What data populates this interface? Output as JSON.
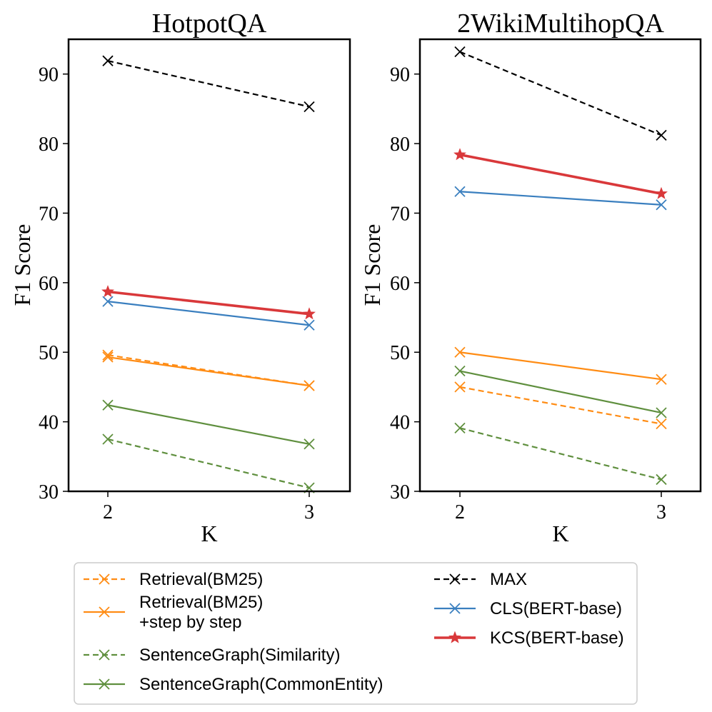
{
  "chart_data": [
    {
      "type": "line",
      "title": "HotpotQA",
      "xlabel": "K",
      "ylabel": "F1 Score",
      "x": [
        2,
        3
      ],
      "xticks": [
        "2",
        "3"
      ],
      "ylim": [
        30,
        95
      ],
      "yticks": [
        "30",
        "40",
        "50",
        "60",
        "70",
        "80",
        "90"
      ],
      "series": [
        {
          "name": "Retrieval(BM25)",
          "values": [
            49.6,
            45.2
          ]
        },
        {
          "name": "Retrieval(BM25) +step by step",
          "values": [
            49.3,
            45.2
          ]
        },
        {
          "name": "SentenceGraph(Similarity)",
          "values": [
            37.5,
            30.5
          ]
        },
        {
          "name": "SentenceGraph(CommonEntity)",
          "values": [
            42.4,
            36.8
          ]
        },
        {
          "name": "MAX",
          "values": [
            91.9,
            85.3
          ]
        },
        {
          "name": "CLS(BERT-base)",
          "values": [
            57.3,
            53.9
          ]
        },
        {
          "name": "KCS(BERT-base)",
          "values": [
            58.7,
            55.5
          ]
        }
      ]
    },
    {
      "type": "line",
      "title": "2WikiMultihopQA",
      "xlabel": "K",
      "ylabel": "F1 Score",
      "x": [
        2,
        3
      ],
      "xticks": [
        "2",
        "3"
      ],
      "ylim": [
        30,
        95
      ],
      "yticks": [
        "30",
        "40",
        "50",
        "60",
        "70",
        "80",
        "90"
      ],
      "series": [
        {
          "name": "Retrieval(BM25)",
          "values": [
            45.0,
            39.7
          ]
        },
        {
          "name": "Retrieval(BM25) +step by step",
          "values": [
            50.0,
            46.1
          ]
        },
        {
          "name": "SentenceGraph(Similarity)",
          "values": [
            39.1,
            31.7
          ]
        },
        {
          "name": "SentenceGraph(CommonEntity)",
          "values": [
            47.3,
            41.3
          ]
        },
        {
          "name": "MAX",
          "values": [
            93.2,
            81.2
          ]
        },
        {
          "name": "CLS(BERT-base)",
          "values": [
            73.1,
            71.2
          ]
        },
        {
          "name": "KCS(BERT-base)",
          "values": [
            78.4,
            72.8
          ]
        }
      ]
    }
  ],
  "legend": {
    "placement": "bottom",
    "entries": [
      {
        "label_lines": [
          "Retrieval(BM25)"
        ],
        "color": "#ff8c14",
        "dashed": true,
        "marker": "x"
      },
      {
        "label_lines": [
          "Retrieval(BM25)",
          "+step by step"
        ],
        "color": "#ff8c14",
        "dashed": false,
        "marker": "x"
      },
      {
        "label_lines": [
          "SentenceGraph(Similarity)"
        ],
        "color": "#5f8f3e",
        "dashed": true,
        "marker": "x"
      },
      {
        "label_lines": [
          "SentenceGraph(CommonEntity)"
        ],
        "color": "#5f8f3e",
        "dashed": false,
        "marker": "x"
      },
      {
        "label_lines": [
          "MAX"
        ],
        "color": "#000000",
        "dashed": true,
        "marker": "x"
      },
      {
        "label_lines": [
          "CLS(BERT-base)"
        ],
        "color": "#3a7fbf",
        "dashed": false,
        "marker": "x"
      },
      {
        "label_lines": [
          "KCS(BERT-base)"
        ],
        "color": "#d9383a",
        "dashed": false,
        "marker": "star"
      }
    ]
  }
}
